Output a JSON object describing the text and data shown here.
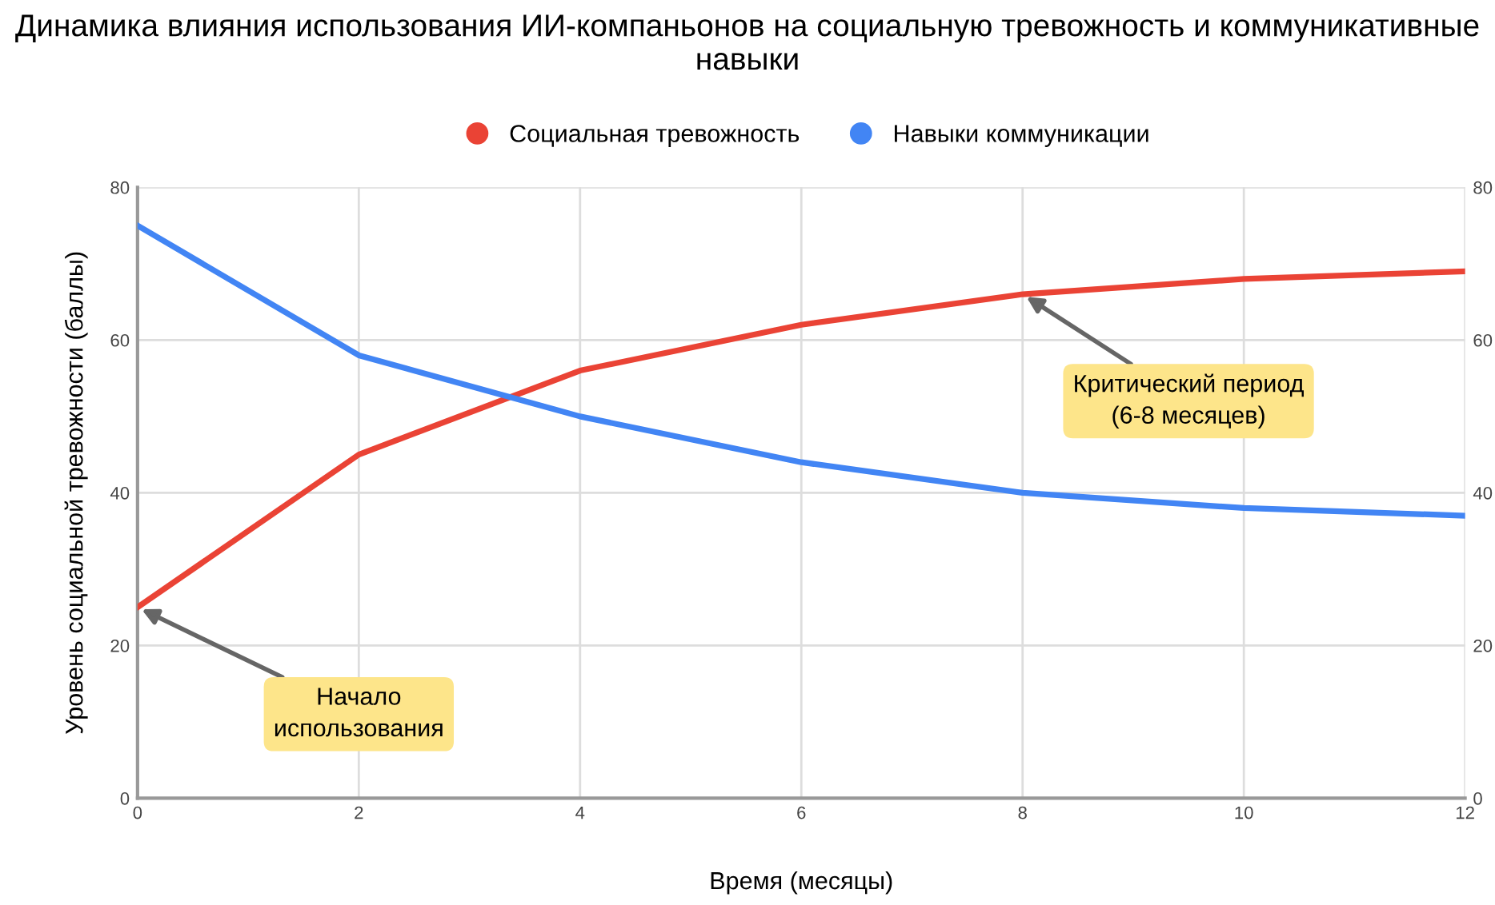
{
  "chart_data": {
    "type": "line",
    "title": "Динамика влияния использования ИИ-компаньонов на социальную тревожность и коммуникативные навыки",
    "xlabel": "Время (месяцы)",
    "ylabel": "Уровень социальной тревожности (баллы)",
    "x": [
      0,
      2,
      4,
      6,
      8,
      10,
      12
    ],
    "series": [
      {
        "name": "Социальная тревожность",
        "color": "#ea4335",
        "values": [
          25,
          45,
          56,
          62,
          66,
          68,
          69
        ]
      },
      {
        "name": "Навыки коммуникации",
        "color": "#4285f4",
        "values": [
          75,
          58,
          50,
          44,
          40,
          38,
          37
        ]
      }
    ],
    "xlim": [
      0,
      12
    ],
    "xticks": [
      0,
      2,
      4,
      6,
      8,
      10,
      12
    ],
    "ylim": [
      0,
      80
    ],
    "yticks": [
      0,
      20,
      40,
      60,
      80
    ],
    "y2lim": [
      0,
      80
    ],
    "y2ticks": [
      0,
      20,
      40,
      60,
      80
    ],
    "annotations": [
      {
        "text": "Начало\nиспользования",
        "x": 0,
        "y": 25
      },
      {
        "text": "Критический период\n(6-8 месяцев)",
        "x": 8,
        "y": 66
      }
    ],
    "grid": true,
    "legend": "top",
    "marker": "none",
    "line_style": "solid"
  }
}
